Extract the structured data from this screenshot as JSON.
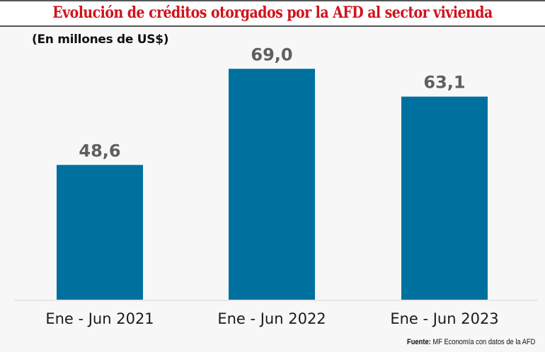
{
  "header": {
    "title": "Evolución de créditos otorgados por la AFD al sector vivienda",
    "subtitle": "(En millones de US$)"
  },
  "footer": {
    "source_label": "Fuente:",
    "source_text": " MF Economía con datos de la AFD"
  },
  "colors": {
    "bar": "#00709e",
    "title": "#d0121b",
    "value_label": "#5f5f5f"
  },
  "chart_data": {
    "type": "bar",
    "title": "Evolución de créditos otorgados por la AFD al sector vivienda",
    "subtitle": "(En millones de US$)",
    "categories": [
      "Ene - Jun 2021",
      "Ene - Jun 2022",
      "Ene - Jun 2023"
    ],
    "values": [
      48.6,
      69.0,
      63.1
    ],
    "value_labels": [
      "48,6",
      "69,0",
      "63,1"
    ],
    "xlabel": "",
    "ylabel": "Millones de US$",
    "ylim": [
      20,
      80
    ],
    "grid": false,
    "legend": "none"
  }
}
